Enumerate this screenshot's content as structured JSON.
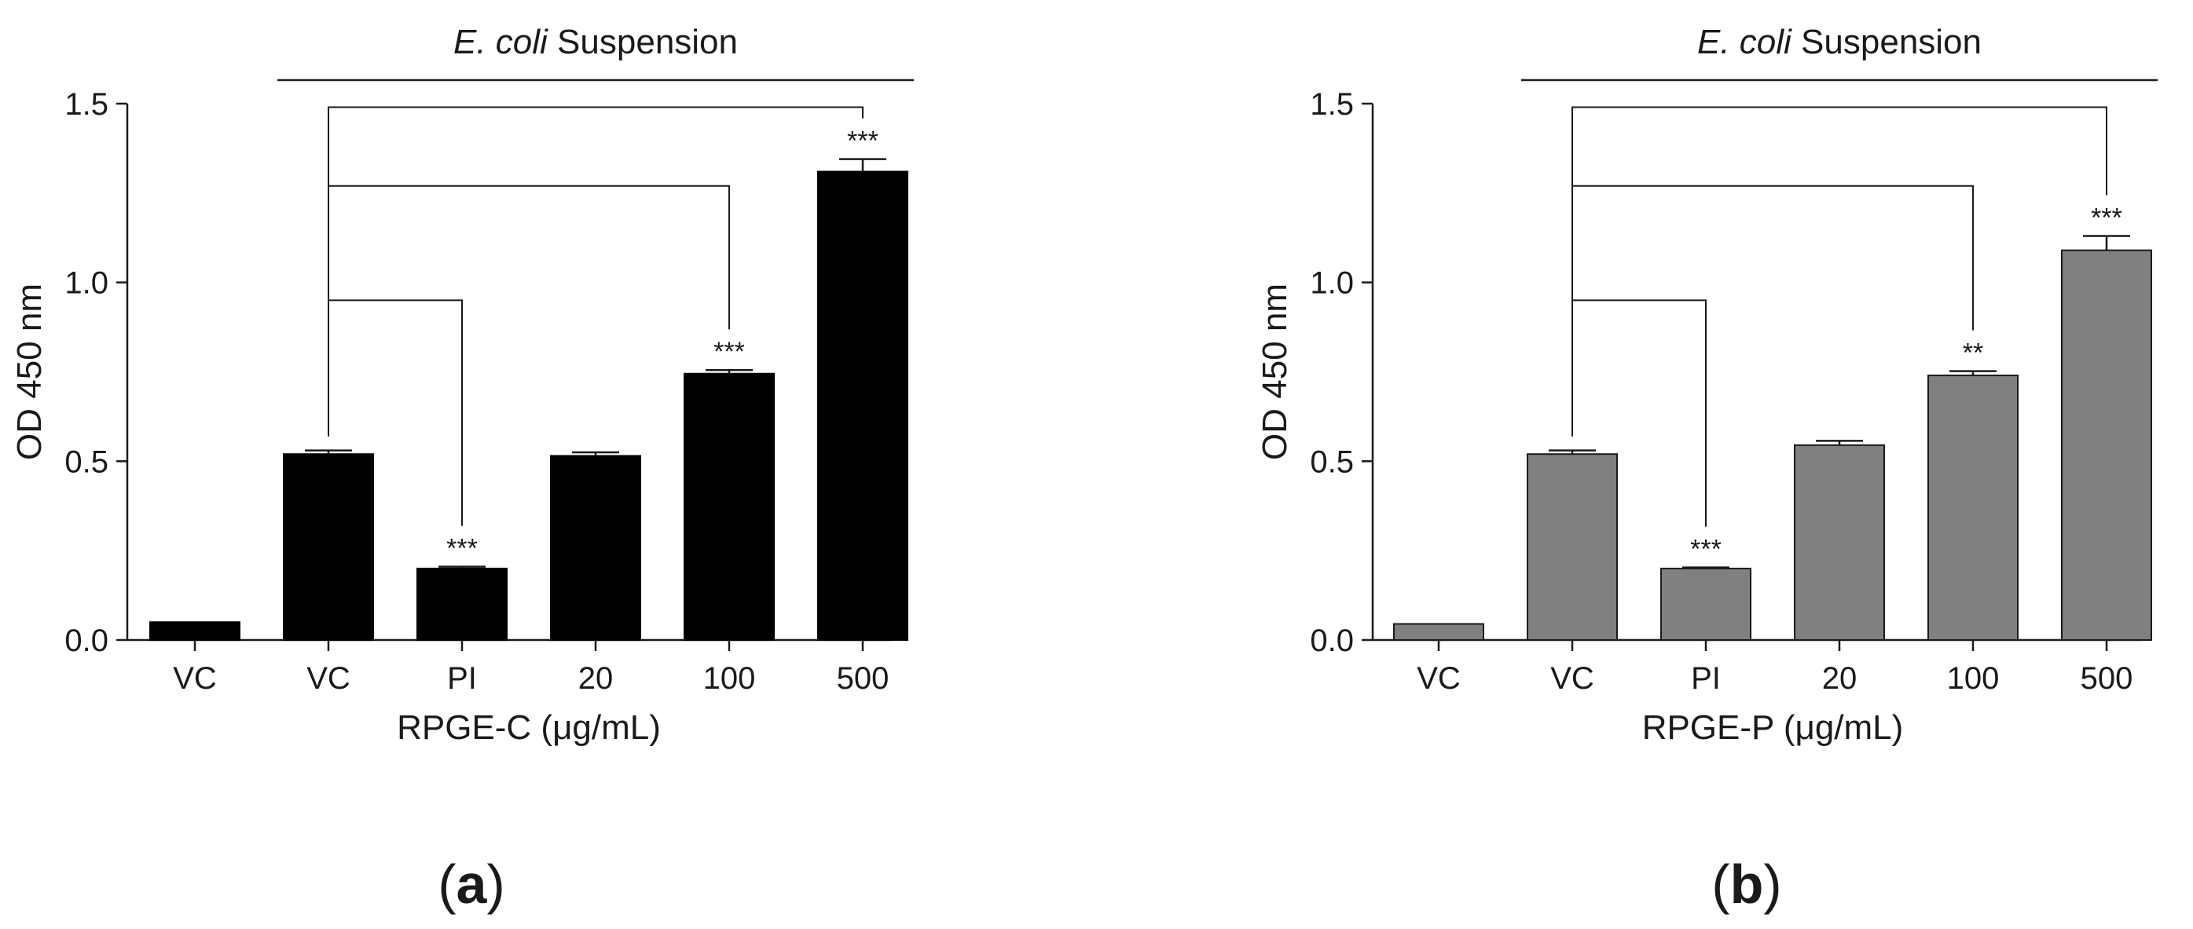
{
  "figure": {
    "panel_a_label": "a",
    "panel_b_label": "b"
  },
  "chart_data": [
    {
      "type": "bar",
      "panel": "a",
      "bar_color": "#000000",
      "bar_edge": "#000000",
      "suspension_label_italic": "E. coli",
      "suspension_label_rest": " Suspension",
      "ylabel": "OD 450 nm",
      "xlabel": "RPGE-C (μg/mL)",
      "ylim": [
        0,
        1.5
      ],
      "yticks": [
        "0.0",
        "0.5",
        "1.0",
        "1.5"
      ],
      "categories": [
        "VC",
        "VC",
        "PI",
        "20",
        "100",
        "500"
      ],
      "values": [
        0.05,
        0.52,
        0.2,
        0.515,
        0.745,
        1.31
      ],
      "errors": [
        0,
        0.01,
        0.005,
        0.01,
        0.01,
        0.035
      ],
      "significance": [
        "",
        "",
        "***",
        "",
        "***",
        "***"
      ],
      "brackets": [
        {
          "from": 1,
          "to": 2,
          "level": 0.95
        },
        {
          "from": 1,
          "to": 4,
          "level": 1.27
        },
        {
          "from": 1,
          "to": 5,
          "level": 1.49
        }
      ],
      "suspension_span": [
        1,
        5
      ]
    },
    {
      "type": "bar",
      "panel": "b",
      "bar_color": "#808080",
      "bar_edge": "#1a1a1a",
      "suspension_label_italic": "E. coli",
      "suspension_label_rest": " Suspension",
      "ylabel": "OD 450 nm",
      "xlabel": "RPGE-P (μg/mL)",
      "ylim": [
        0,
        1.5
      ],
      "yticks": [
        "0.0",
        "0.5",
        "1.0",
        "1.5"
      ],
      "categories": [
        "VC",
        "VC",
        "PI",
        "20",
        "100",
        "500"
      ],
      "values": [
        0.045,
        0.52,
        0.2,
        0.545,
        0.74,
        1.09
      ],
      "errors": [
        0,
        0.01,
        0.003,
        0.012,
        0.012,
        0.04
      ],
      "significance": [
        "",
        "",
        "***",
        "",
        "**",
        "***"
      ],
      "brackets": [
        {
          "from": 1,
          "to": 2,
          "level": 0.95
        },
        {
          "from": 1,
          "to": 4,
          "level": 1.27
        },
        {
          "from": 1,
          "to": 5,
          "level": 1.49
        }
      ],
      "suspension_span": [
        1,
        5
      ]
    }
  ]
}
